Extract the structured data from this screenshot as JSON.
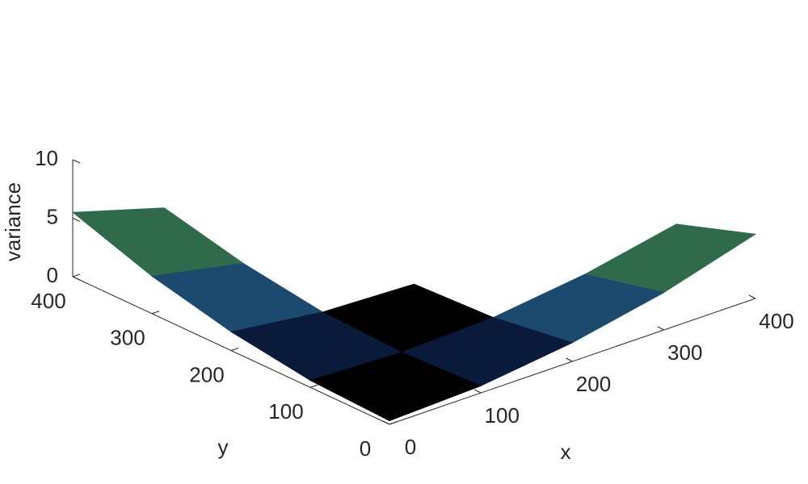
{
  "chart_data": {
    "type": "surface",
    "xlabel": "x",
    "ylabel": "y",
    "zlabel": "variance",
    "x": [
      0,
      100,
      200,
      300,
      400
    ],
    "y": [
      0,
      100,
      200,
      300,
      400
    ],
    "z": [
      [
        0.3,
        0.6,
        1.6,
        3.2,
        5.5
      ],
      [
        0.6,
        0.3,
        0.6,
        1.6,
        3.2
      ],
      [
        1.6,
        0.6,
        0.3,
        null,
        1.6
      ],
      [
        3.2,
        1.6,
        null,
        null,
        null
      ],
      [
        5.5,
        3.2,
        1.6,
        null,
        null
      ]
    ],
    "xlim": [
      0,
      400
    ],
    "ylim": [
      0,
      400
    ],
    "zlim": [
      0,
      10
    ],
    "xticks": [
      0,
      100,
      200,
      300,
      400
    ],
    "yticks": [
      0,
      100,
      200,
      300,
      400
    ],
    "zticks": [
      0,
      5,
      10
    ],
    "colormap": [
      "#000000",
      "#0a1a3a",
      "#1c4a6e",
      "#2f6a4a",
      "#5a5a22",
      "#6a4a2a"
    ],
    "grid": false
  }
}
